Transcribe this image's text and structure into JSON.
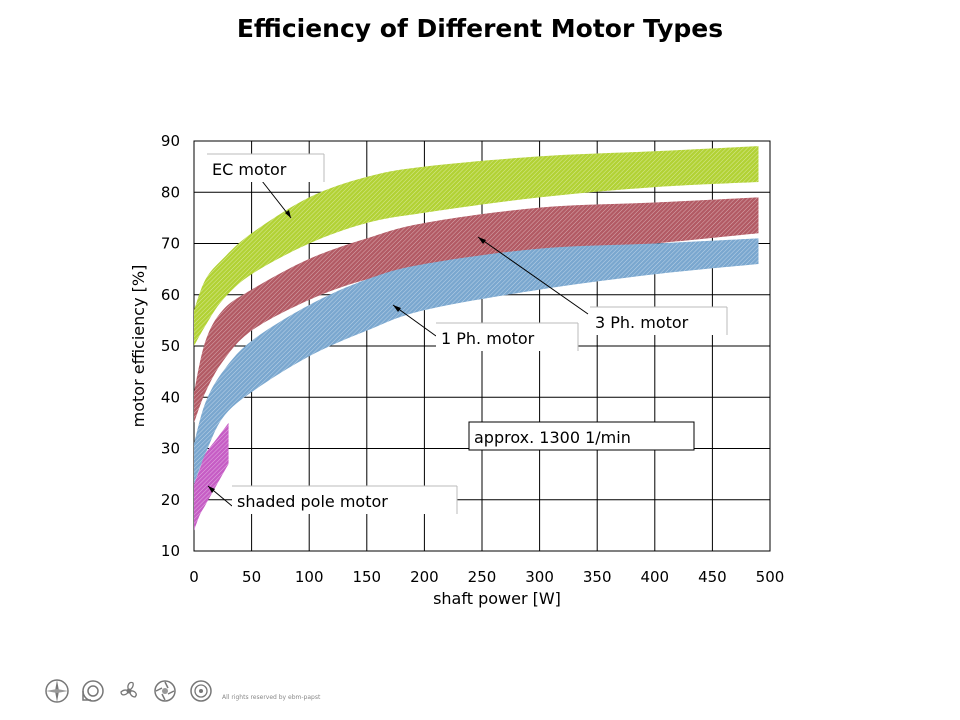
{
  "chart_data": {
    "type": "area",
    "title": "Efficiency of Different Motor Types",
    "xlabel": "shaft power [W]",
    "ylabel": "motor efficiency [%]",
    "xlim": [
      0,
      500
    ],
    "ylim": [
      10,
      90
    ],
    "xticks": [
      0,
      50,
      100,
      150,
      200,
      250,
      300,
      350,
      400,
      450,
      500
    ],
    "yticks": [
      10,
      20,
      30,
      40,
      50,
      60,
      70,
      80,
      90
    ],
    "grid": true,
    "series": [
      {
        "name": "EC motor",
        "color": "#b2d235",
        "x": [
          0,
          10,
          25,
          50,
          100,
          150,
          200,
          300,
          400,
          490
        ],
        "upper": [
          57,
          63,
          67,
          72,
          79,
          83,
          85,
          87,
          88,
          89
        ],
        "lower": [
          50,
          54,
          59,
          64,
          70,
          74,
          76,
          79,
          81,
          82
        ]
      },
      {
        "name": "3 Ph. motor",
        "color": "#b25a64",
        "x": [
          0,
          10,
          25,
          50,
          100,
          150,
          200,
          300,
          400,
          490
        ],
        "upper": [
          41,
          51,
          57,
          61,
          67,
          71,
          74,
          77,
          78,
          79
        ],
        "lower": [
          35,
          41,
          47,
          53,
          59,
          63,
          65,
          68,
          70,
          72
        ]
      },
      {
        "name": "1 Ph. motor",
        "color": "#7aa7cf",
        "x": [
          0,
          10,
          25,
          50,
          100,
          150,
          200,
          300,
          400,
          490
        ],
        "upper": [
          31,
          39,
          45,
          51,
          58,
          63,
          66,
          69,
          70,
          71
        ],
        "lower": [
          23,
          29,
          36,
          41,
          48,
          53,
          57,
          61,
          64,
          66
        ]
      },
      {
        "name": "shaded pole motor",
        "color": "#c65dc5",
        "x": [
          0,
          5,
          10,
          20,
          30
        ],
        "upper": [
          23,
          26,
          29,
          32,
          35
        ],
        "lower": [
          14,
          17,
          19,
          23,
          27
        ]
      }
    ],
    "annotations": [
      {
        "text": "EC motor",
        "target": "EC motor"
      },
      {
        "text": "3 Ph. motor",
        "target": "3 Ph. motor"
      },
      {
        "text": "1 Ph. motor",
        "target": "1 Ph. motor"
      },
      {
        "text": "shaded pole motor",
        "target": "shaded pole motor"
      },
      {
        "text": "approx. 1300 1/min",
        "target": null
      }
    ]
  },
  "footer": {
    "copyright": "All rights reserved by ebm-papst",
    "logos": [
      "compass-logo-icon",
      "blower-logo-icon",
      "fan-logo-icon",
      "axial-logo-icon",
      "radial-logo-icon"
    ]
  }
}
